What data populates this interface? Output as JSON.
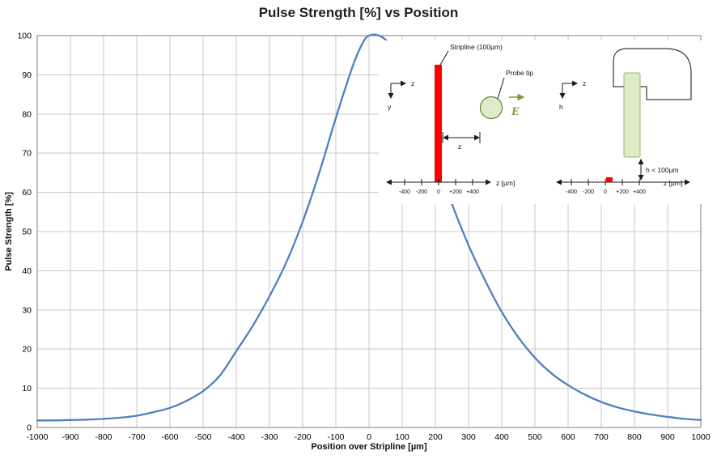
{
  "chart_data": {
    "type": "line",
    "title": "Pulse Strength [%] vs Position",
    "xlabel": "Position over Stripline [µm]",
    "ylabel": "Pulse Strength [%]",
    "xlim": [
      -1000,
      1000
    ],
    "ylim": [
      0,
      100
    ],
    "grid": true,
    "legend": "none",
    "line_color": "#4f81bd",
    "grid_color": "#c9c9c9",
    "border_color": "#7f7f7f",
    "x_ticks": [
      -1000,
      -900,
      -800,
      -700,
      -600,
      -500,
      -400,
      -300,
      -200,
      -100,
      0,
      100,
      200,
      300,
      400,
      500,
      600,
      700,
      800,
      900,
      1000
    ],
    "y_ticks": [
      0,
      10,
      20,
      30,
      40,
      50,
      60,
      70,
      80,
      90,
      100
    ],
    "series": [
      {
        "name": "Pulse Strength",
        "points": [
          [
            -1000,
            1.8
          ],
          [
            -950,
            1.8
          ],
          [
            -900,
            1.9
          ],
          [
            -850,
            2.0
          ],
          [
            -800,
            2.2
          ],
          [
            -750,
            2.5
          ],
          [
            -700,
            3.0
          ],
          [
            -650,
            3.9
          ],
          [
            -600,
            5.0
          ],
          [
            -550,
            6.8
          ],
          [
            -500,
            9.3
          ],
          [
            -450,
            13.2
          ],
          [
            -400,
            19.5
          ],
          [
            -350,
            26.0
          ],
          [
            -300,
            33.5
          ],
          [
            -250,
            42.0
          ],
          [
            -200,
            52.5
          ],
          [
            -150,
            65.0
          ],
          [
            -100,
            79.0
          ],
          [
            -50,
            92.0
          ],
          [
            -20,
            98.0
          ],
          [
            0,
            100.0
          ],
          [
            30,
            100.0
          ],
          [
            60,
            98.0
          ],
          [
            100,
            92.5
          ],
          [
            150,
            82.0
          ],
          [
            200,
            69.0
          ],
          [
            250,
            57.0
          ],
          [
            300,
            46.5
          ],
          [
            350,
            37.5
          ],
          [
            400,
            29.5
          ],
          [
            450,
            23.0
          ],
          [
            500,
            17.8
          ],
          [
            550,
            13.8
          ],
          [
            600,
            10.8
          ],
          [
            650,
            8.4
          ],
          [
            700,
            6.5
          ],
          [
            750,
            5.1
          ],
          [
            800,
            4.1
          ],
          [
            850,
            3.3
          ],
          [
            900,
            2.7
          ],
          [
            950,
            2.2
          ],
          [
            1000,
            1.9
          ]
        ]
      }
    ]
  },
  "inset": {
    "left": {
      "coord_x": "z",
      "coord_y": "y",
      "stripline_label": "Stripline (100µm)",
      "probe_label": "Probe tip",
      "e_label": "E",
      "distance_label": "z",
      "axis_label": "z [µm]",
      "ticks": [
        "-400",
        "-200",
        "0",
        "+200",
        "+400"
      ]
    },
    "right": {
      "coord_x": "z",
      "coord_y": "h",
      "height_label": "h < 100µm",
      "axis_label": "z [µm]",
      "ticks": [
        "-400",
        "-200",
        "0",
        "+200",
        "+400"
      ]
    }
  }
}
